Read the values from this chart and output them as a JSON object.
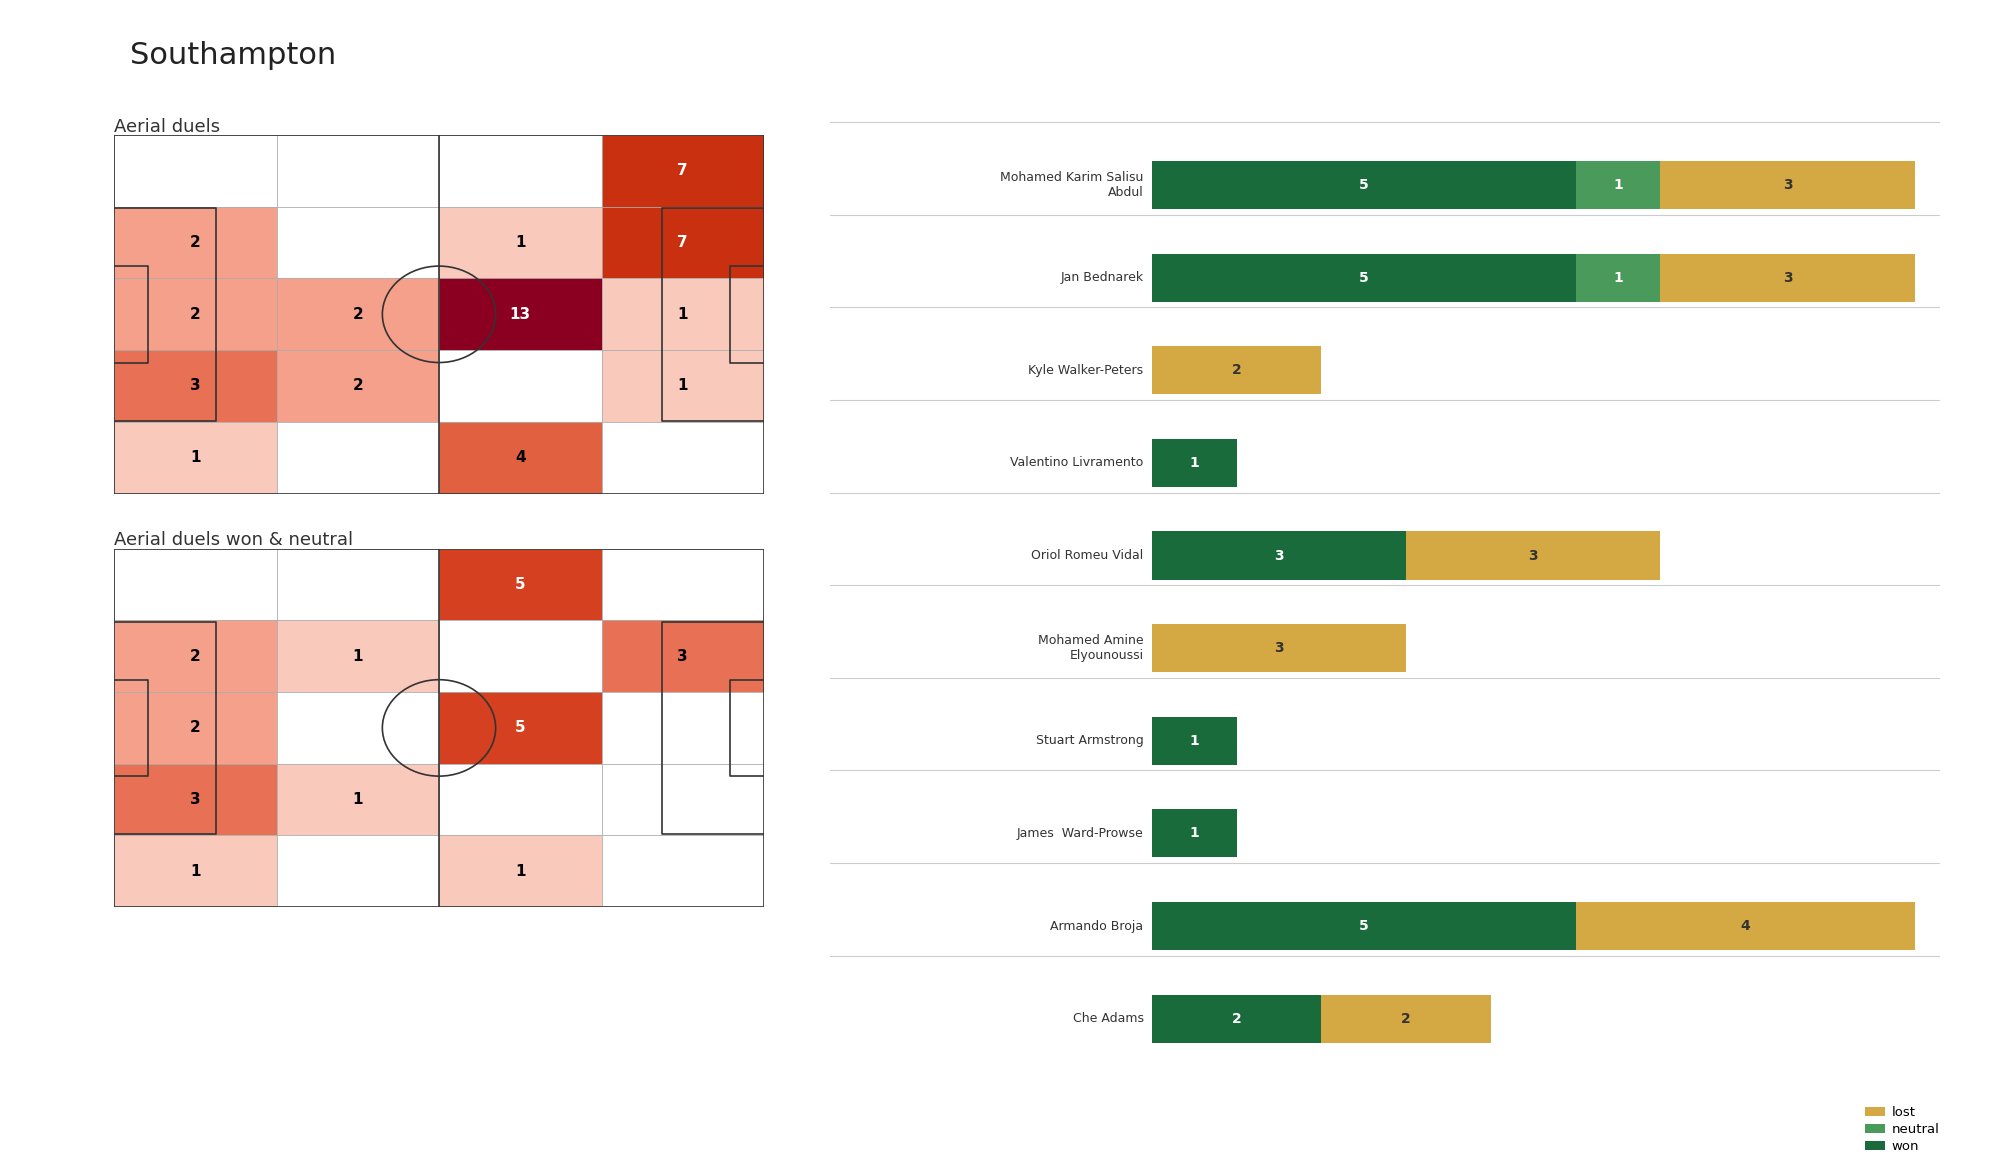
{
  "title": "Southampton",
  "heatmap1_title": "Aerial duels",
  "heatmap2_title": "Aerial duels won & neutral",
  "background_color": "#ffffff",
  "heatmap1_grid": {
    "values": [
      [
        0,
        0,
        0,
        7
      ],
      [
        2,
        0,
        1,
        7
      ],
      [
        2,
        2,
        13,
        1
      ],
      [
        3,
        2,
        0,
        1
      ],
      [
        1,
        0,
        4,
        0
      ]
    ]
  },
  "heatmap2_grid": {
    "values": [
      [
        0,
        0,
        5,
        0
      ],
      [
        2,
        1,
        0,
        3
      ],
      [
        2,
        0,
        5,
        0
      ],
      [
        3,
        1,
        0,
        0
      ],
      [
        1,
        0,
        1,
        0
      ]
    ]
  },
  "players": [
    {
      "name": "Mohamed Karim Salisu\nAbdul",
      "won": 5,
      "neutral": 1,
      "lost": 3
    },
    {
      "name": "Jan Bednarek",
      "won": 5,
      "neutral": 1,
      "lost": 3
    },
    {
      "name": "Kyle Walker-Peters",
      "won": 0,
      "neutral": 0,
      "lost": 2
    },
    {
      "name": "Valentino Livramento",
      "won": 1,
      "neutral": 0,
      "lost": 0
    },
    {
      "name": "Oriol Romeu Vidal",
      "won": 3,
      "neutral": 0,
      "lost": 3
    },
    {
      "name": "Mohamed Amine\nElyounoussi",
      "won": 0,
      "neutral": 0,
      "lost": 3
    },
    {
      "name": "Stuart Armstrong",
      "won": 1,
      "neutral": 0,
      "lost": 0
    },
    {
      "name": "James  Ward-Prowse",
      "won": 1,
      "neutral": 0,
      "lost": 0
    },
    {
      "name": "Armando Broja",
      "won": 5,
      "neutral": 0,
      "lost": 4
    },
    {
      "name": "Che Adams",
      "won": 2,
      "neutral": 0,
      "lost": 2
    }
  ],
  "bar_won_color": "#1a6b3c",
  "bar_neutral_color": "#4a9a5c",
  "bar_lost_color": "#d4a843",
  "separator_color": "#cccccc",
  "pitch_line_color": "#333333"
}
